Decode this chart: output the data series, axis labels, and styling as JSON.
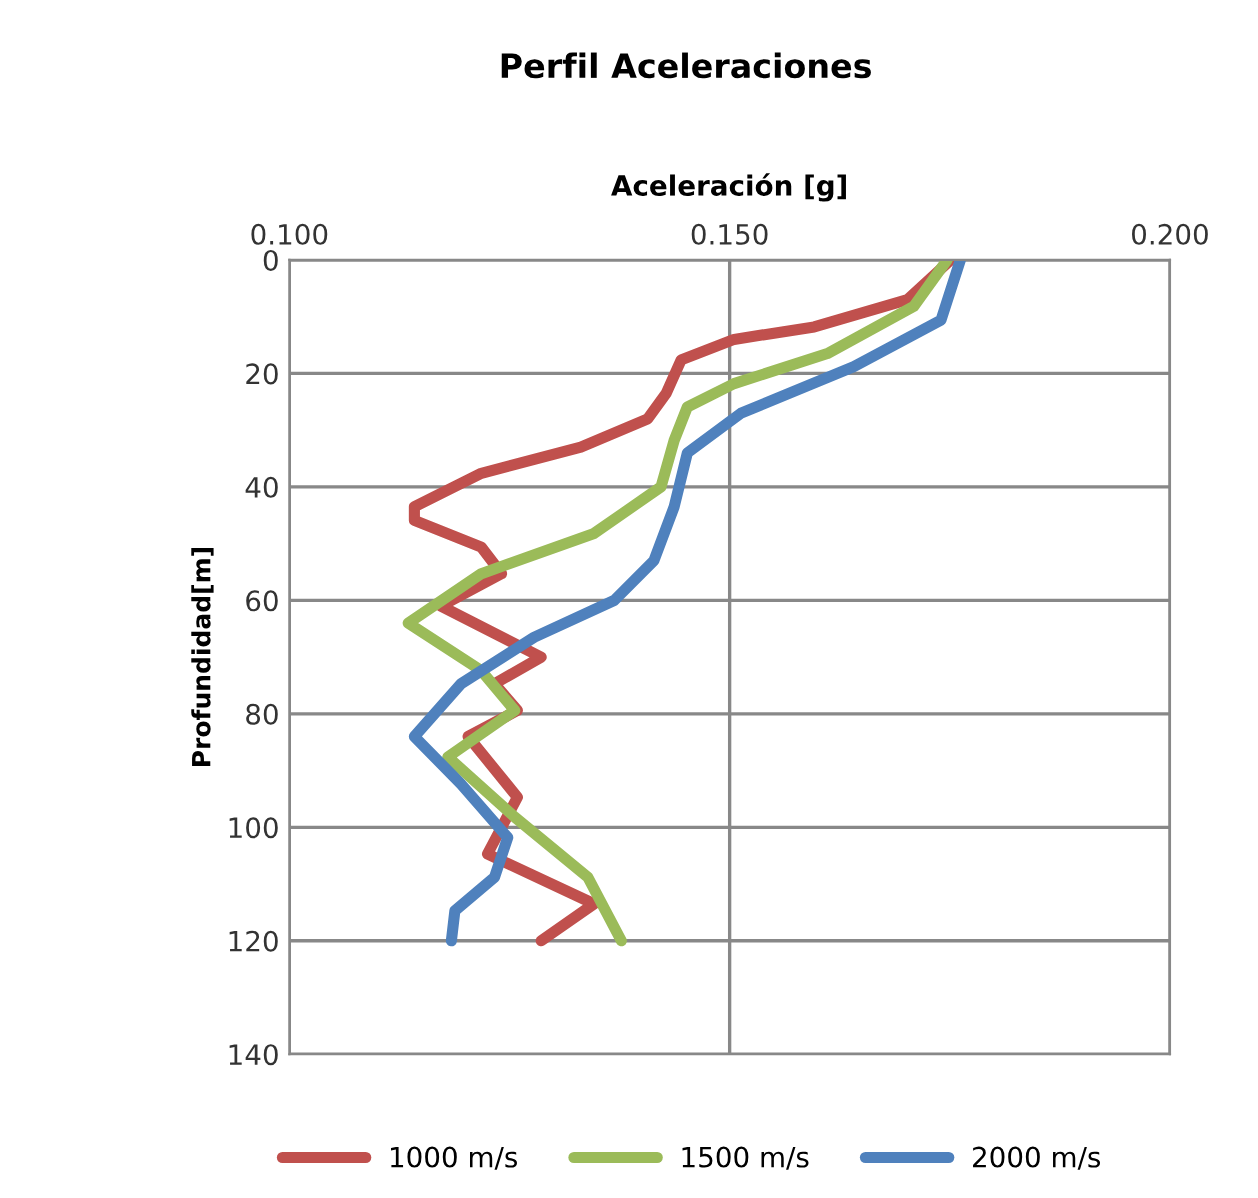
{
  "chart_data": {
    "type": "line",
    "title": "Perfil Aceleraciones",
    "xlabel": "Aceleración [g]",
    "ylabel": "Profundidad[m]",
    "xlim": [
      0.1,
      0.2
    ],
    "xticks": [
      {
        "value": 0.1,
        "label": "0.100"
      },
      {
        "value": 0.15,
        "label": "0.150"
      },
      {
        "value": 0.2,
        "label": "0.200"
      }
    ],
    "ylim": [
      140,
      0
    ],
    "yticks": [
      0,
      20,
      40,
      60,
      80,
      100,
      120,
      140
    ],
    "grid": true,
    "legend": "bottom",
    "marker": "none",
    "line_style": "solid",
    "series": [
      {
        "name": "1000 m/s",
        "color": "#c0504d",
        "x": [
          0.1751,
          0.1702,
          0.1596,
          0.1505,
          0.1445,
          0.1428,
          0.1407,
          0.1331,
          0.1218,
          0.1142,
          0.1142,
          0.1218,
          0.1241,
          0.1172,
          0.1286,
          0.1233,
          0.1259,
          0.1203,
          0.1259,
          0.1225,
          0.1346,
          0.1286
        ],
        "values": [
          0,
          7,
          11.8,
          14,
          17.6,
          23.5,
          28,
          33,
          37.6,
          43.5,
          45.9,
          50.6,
          55.3,
          61,
          70,
          74.7,
          79.4,
          84,
          94.7,
          104.7,
          113.5,
          120
        ]
      },
      {
        "name": "1500 m/s",
        "color": "#9bbb59",
        "x": [
          0.1747,
          0.1709,
          0.1611,
          0.1505,
          0.1452,
          0.1437,
          0.1422,
          0.1346,
          0.1218,
          0.1135,
          0.1218,
          0.1256,
          0.118,
          0.1256,
          0.1339,
          0.1377
        ],
        "values": [
          0,
          8.2,
          16.5,
          21.8,
          25.9,
          31.8,
          40,
          48.2,
          55.3,
          64,
          72.4,
          79.4,
          87.6,
          98.2,
          108.8,
          120
        ]
      },
      {
        "name": "2000 m/s",
        "color": "#4f81bd",
        "x": [
          0.1762,
          0.174,
          0.1641,
          0.1513,
          0.1452,
          0.1437,
          0.1414,
          0.1369,
          0.1278,
          0.1195,
          0.1142,
          0.1195,
          0.1248,
          0.1233,
          0.1188,
          0.1184
        ],
        "values": [
          0,
          10.6,
          18.8,
          27,
          34,
          43.5,
          53,
          60,
          66.5,
          74.7,
          84,
          92.4,
          101.8,
          108.8,
          114.7,
          120
        ]
      }
    ]
  }
}
